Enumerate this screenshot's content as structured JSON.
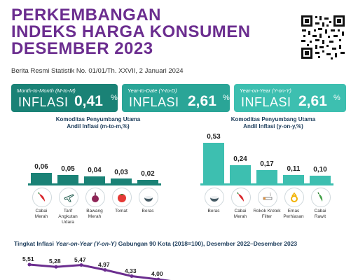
{
  "header": {
    "title_line1": "PERKEMBANGAN",
    "title_line2": "INDEKS HARGA KONSUMEN",
    "title_line3": "DESEMBER 2023",
    "subtitle": "Berita Resmi Statistik No. 01/01/Th. XXVII, 2 Januari 2024"
  },
  "cards": [
    {
      "label": "Month-to-Month (M-to-M)",
      "inflasi": "INFLASI",
      "value": "0,41",
      "unit": "%",
      "color": "#1a8276"
    },
    {
      "label": "Year-to-Date (Y-to-D)",
      "inflasi": "INFLASI",
      "value": "2,61",
      "unit": "%",
      "color": "#2aa597"
    },
    {
      "label": "Year-on-Year (Y-on-Y)",
      "inflasi": "INFLASI",
      "value": "2,61",
      "unit": "%",
      "color": "#3dbfb0"
    }
  ],
  "left_panel": {
    "title_line1": "Komoditas Penyumbang Utama",
    "title_line2": "Andil Inflasi (m-to-m,%)",
    "color": "#1a8276",
    "items": [
      {
        "value": "0,06",
        "num": 0.06,
        "label_line1": "Cabai",
        "label_line2": "Merah",
        "label_line3": "",
        "icon": "chili-icon"
      },
      {
        "value": "0,05",
        "num": 0.05,
        "label_line1": "Tarif",
        "label_line2": "Angkutan",
        "label_line3": "Udara",
        "icon": "airplane-icon"
      },
      {
        "value": "0,04",
        "num": 0.04,
        "label_line1": "Bawang",
        "label_line2": "Merah",
        "label_line3": "",
        "icon": "shallot-icon"
      },
      {
        "value": "0,03",
        "num": 0.03,
        "label_line1": "Tomat",
        "label_line2": "",
        "label_line3": "",
        "icon": "tomato-icon"
      },
      {
        "value": "0,02",
        "num": 0.02,
        "label_line1": "Beras",
        "label_line2": "",
        "label_line3": "",
        "icon": "rice-bowl-icon"
      }
    ]
  },
  "right_panel": {
    "title_line1": "Komoditas Penyumbang Utama",
    "title_line2": "Andil Inflasi (y-on-y,%)",
    "color": "#3dbfb0",
    "items": [
      {
        "value": "0,53",
        "num": 0.53,
        "label_line1": "Beras",
        "label_line2": "",
        "icon": "rice-bowl-icon"
      },
      {
        "value": "0,24",
        "num": 0.24,
        "label_line1": "Cabai",
        "label_line2": "Merah",
        "icon": "chili-icon"
      },
      {
        "value": "0,17",
        "num": 0.17,
        "label_line1": "Rokok Kretek",
        "label_line2": "Filter",
        "icon": "cigarette-icon"
      },
      {
        "value": "0,11",
        "num": 0.11,
        "label_line1": "Emas",
        "label_line2": "Perhiasan",
        "icon": "gold-jewelry-icon"
      },
      {
        "value": "0,10",
        "num": 0.1,
        "label_line1": "Cabai",
        "label_line2": "Rawit",
        "icon": "green-chili-icon"
      }
    ]
  },
  "bottom": {
    "title_pre": "Tingkat Inflasi ",
    "title_em": "Year-on-Year (Y-on-Y)",
    "title_post": " Gabungan 90 Kota (2018=100), Desember 2022–Desember 2023",
    "values": [
      "5,51",
      "5,28",
      "5,47",
      "4,97",
      "4,33",
      "4,00"
    ],
    "line_color": "#6b2d8f"
  }
}
